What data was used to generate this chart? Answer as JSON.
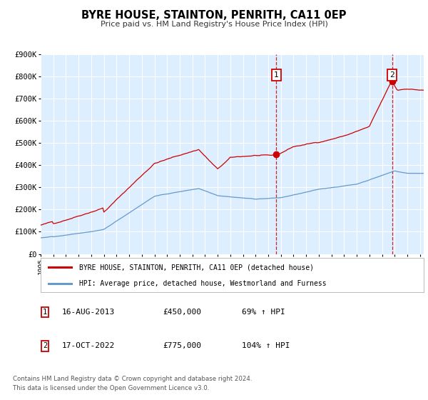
{
  "title": "BYRE HOUSE, STAINTON, PENRITH, CA11 0EP",
  "subtitle": "Price paid vs. HM Land Registry's House Price Index (HPI)",
  "legend_red": "BYRE HOUSE, STAINTON, PENRITH, CA11 0EP (detached house)",
  "legend_blue": "HPI: Average price, detached house, Westmorland and Furness",
  "annotation1_date": "16-AUG-2013",
  "annotation1_price": "£450,000",
  "annotation1_hpi": "69% ↑ HPI",
  "annotation2_date": "17-OCT-2022",
  "annotation2_price": "£775,000",
  "annotation2_hpi": "104% ↑ HPI",
  "footer1": "Contains HM Land Registry data © Crown copyright and database right 2024.",
  "footer2": "This data is licensed under the Open Government Licence v3.0.",
  "ylim": [
    0,
    900000
  ],
  "yticks": [
    0,
    100000,
    200000,
    300000,
    400000,
    500000,
    600000,
    700000,
    800000,
    900000
  ],
  "ytick_labels": [
    "£0",
    "£100K",
    "£200K",
    "£300K",
    "£400K",
    "£500K",
    "£600K",
    "£700K",
    "£800K",
    "£900K"
  ],
  "xlim_start": 1995,
  "xlim_end": 2025.3,
  "red_color": "#cc0000",
  "blue_color": "#6699cc",
  "bg_color": "#ddeeff",
  "grid_color": "#ffffff",
  "marker1_date_year": 2013.625,
  "marker1_price": 450000,
  "marker2_date_year": 2022.79,
  "marker2_price": 775000
}
